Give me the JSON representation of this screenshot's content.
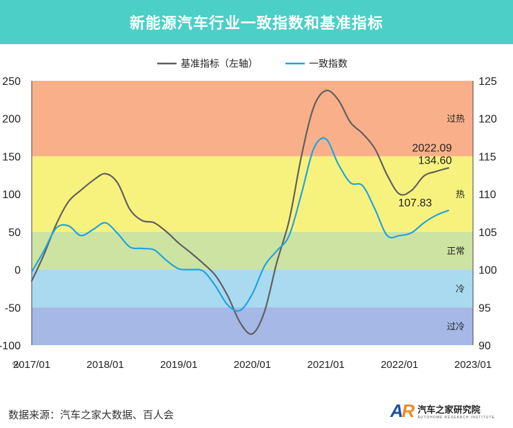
{
  "header": {
    "title": "新能源汽车行业一致指数和基准指标"
  },
  "colors": {
    "header_bg": "#4ccfc6",
    "base_line": "#5f5f5f",
    "consistent_line": "#1fa3e0"
  },
  "chart_data": {
    "type": "line",
    "title": "新能源汽车行业一致指数和基准指标",
    "legend": {
      "placement": "top-center",
      "entries": [
        "基准指标（左轴）",
        "一致指数"
      ]
    },
    "x_ticks": [
      "2017/01",
      "2018/01",
      "2019/01",
      "2020/01",
      "2021/01",
      "2022/01",
      "2023/01"
    ],
    "left_axis": {
      "range": [
        -100,
        250
      ],
      "ticks": [
        250,
        200,
        150,
        100,
        50,
        0,
        -50,
        -100
      ],
      "unit_label": "%"
    },
    "right_axis": {
      "range": [
        90,
        125
      ],
      "ticks": [
        125,
        120,
        115,
        110,
        105,
        100,
        95,
        90
      ]
    },
    "zones": [
      {
        "label": "过热",
        "from": 150,
        "to": 250,
        "color": "#f9b08a"
      },
      {
        "label": "热",
        "from": 50,
        "to": 150,
        "color": "#f7f27e"
      },
      {
        "label": "正常",
        "from": 0,
        "to": 50,
        "color": "#cde3a2"
      },
      {
        "label": "冷",
        "from": -50,
        "to": 0,
        "color": "#a9daf0"
      },
      {
        "label": "过冷",
        "from": -100,
        "to": -50,
        "color": "#a5b8e6"
      }
    ],
    "series": [
      {
        "name": "基准指标（左轴）",
        "axis": "left",
        "color": "#5f5f5f",
        "points": [
          [
            "2017/01",
            -15
          ],
          [
            "2017/03",
            20
          ],
          [
            "2017/05",
            60
          ],
          [
            "2017/07",
            90
          ],
          [
            "2017/09",
            105
          ],
          [
            "2017/11",
            118
          ],
          [
            "2018/01",
            127
          ],
          [
            "2018/03",
            115
          ],
          [
            "2018/05",
            80
          ],
          [
            "2018/07",
            65
          ],
          [
            "2018/09",
            62
          ],
          [
            "2018/11",
            50
          ],
          [
            "2019/01",
            35
          ],
          [
            "2019/03",
            22
          ],
          [
            "2019/05",
            8
          ],
          [
            "2019/07",
            -8
          ],
          [
            "2019/09",
            -35
          ],
          [
            "2019/11",
            -70
          ],
          [
            "2020/01",
            -85
          ],
          [
            "2020/03",
            -55
          ],
          [
            "2020/05",
            10
          ],
          [
            "2020/07",
            65
          ],
          [
            "2020/09",
            150
          ],
          [
            "2020/11",
            215
          ],
          [
            "2021/01",
            237
          ],
          [
            "2021/03",
            225
          ],
          [
            "2021/05",
            195
          ],
          [
            "2021/07",
            180
          ],
          [
            "2021/09",
            160
          ],
          [
            "2021/11",
            125
          ],
          [
            "2022/01",
            100
          ],
          [
            "2022/03",
            105
          ],
          [
            "2022/05",
            124
          ],
          [
            "2022/07",
            130
          ],
          [
            "2022/09",
            134.6
          ]
        ]
      },
      {
        "name": "一致指数",
        "axis": "right",
        "color": "#1fa3e0",
        "points": [
          [
            "2017/01",
            99.7
          ],
          [
            "2017/03",
            102.5
          ],
          [
            "2017/05",
            105.5
          ],
          [
            "2017/07",
            105.8
          ],
          [
            "2017/09",
            104.5
          ],
          [
            "2017/11",
            105.3
          ],
          [
            "2018/01",
            106.2
          ],
          [
            "2018/03",
            104.8
          ],
          [
            "2018/05",
            103.0
          ],
          [
            "2018/07",
            102.8
          ],
          [
            "2018/09",
            102.6
          ],
          [
            "2018/11",
            101.2
          ],
          [
            "2019/01",
            100.1
          ],
          [
            "2019/03",
            100.0
          ],
          [
            "2019/05",
            99.8
          ],
          [
            "2019/07",
            97.8
          ],
          [
            "2019/09",
            95.3
          ],
          [
            "2019/11",
            94.6
          ],
          [
            "2020/01",
            96.8
          ],
          [
            "2020/03",
            100.5
          ],
          [
            "2020/05",
            102.5
          ],
          [
            "2020/07",
            104.5
          ],
          [
            "2020/09",
            110.0
          ],
          [
            "2020/11",
            116.0
          ],
          [
            "2021/01",
            117.3
          ],
          [
            "2021/03",
            114.0
          ],
          [
            "2021/05",
            111.5
          ],
          [
            "2021/07",
            111.1
          ],
          [
            "2021/09",
            108.0
          ],
          [
            "2021/11",
            104.5
          ],
          [
            "2022/01",
            104.5
          ],
          [
            "2022/03",
            104.9
          ],
          [
            "2022/05",
            106.2
          ],
          [
            "2022/07",
            107.2
          ],
          [
            "2022/09",
            107.83
          ]
        ]
      }
    ],
    "annotations": [
      {
        "text": "2022.09",
        "x": "2022/09",
        "y": 134.6,
        "axis": "left"
      },
      {
        "text": "134.60",
        "x": "2022/09",
        "y": 134.6,
        "axis": "left"
      },
      {
        "text": "107.83",
        "x": "2022/09",
        "y": 107.83,
        "axis": "right"
      }
    ],
    "grid": false
  },
  "footer": {
    "source": "数据来源：汽车之家大数据、百人会",
    "brand_name": "汽车之家研究院",
    "brand_sub": "AUTOHOME RESEARCH INSTITUTE",
    "brand_mark": "AR"
  }
}
